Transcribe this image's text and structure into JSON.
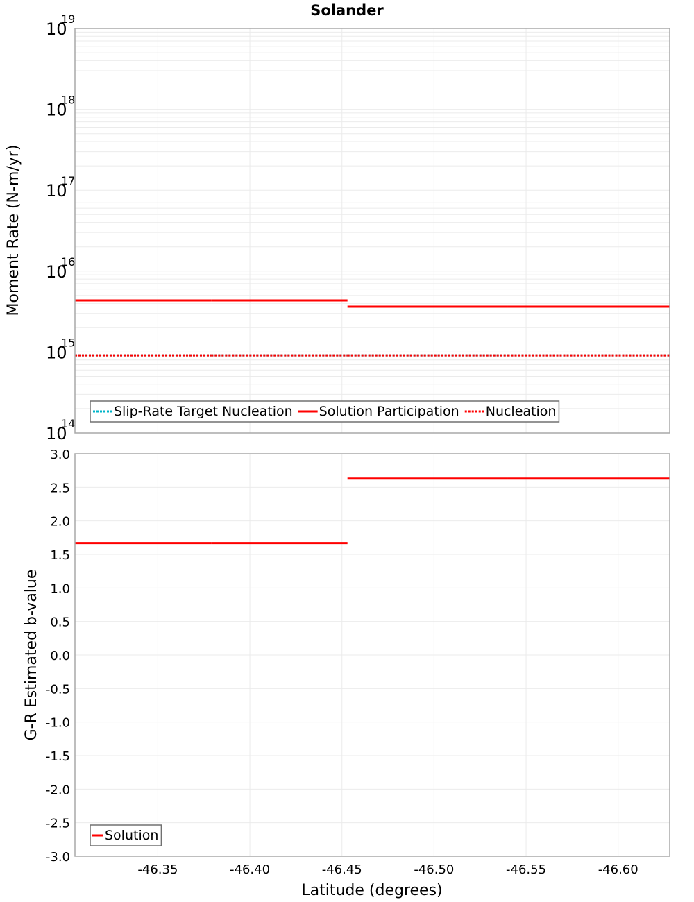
{
  "figure": {
    "title": "Solander",
    "xlabel": "Latitude (degrees)"
  },
  "chart_data": [
    {
      "type": "line",
      "panel": "top",
      "title": "Solander",
      "xlabel": "Latitude (degrees)",
      "ylabel": "Moment Rate (N-m/yr)",
      "yscale": "log",
      "ylim": [
        100000000000000.0,
        1e+19
      ],
      "xlim": [
        -46.305,
        -46.628
      ],
      "x_inverted": true,
      "grid": true,
      "y_ticks": [
        {
          "base": "10",
          "exp": "14",
          "value": 100000000000000.0
        },
        {
          "base": "10",
          "exp": "15",
          "value": 1000000000000000.0
        },
        {
          "base": "10",
          "exp": "16",
          "value": 1e+16
        },
        {
          "base": "10",
          "exp": "17",
          "value": 1e+17
        },
        {
          "base": "10",
          "exp": "18",
          "value": 1e+18
        },
        {
          "base": "10",
          "exp": "19",
          "value": 1e+19
        }
      ],
      "x_ticks": [
        "-46.35",
        "-46.40",
        "-46.45",
        "-46.50",
        "-46.55",
        "-46.60"
      ],
      "legend_position": "lower-left",
      "legend": [
        {
          "label": "Slip-Rate Target Nucleation",
          "color": "#00b4c8",
          "style": "dotted"
        },
        {
          "label": "Solution Participation",
          "color": "#ff0000",
          "style": "solid"
        },
        {
          "label": "Nucleation",
          "color": "#ff0000",
          "style": "dotted"
        }
      ],
      "segment_edges": [
        -46.305,
        -46.379,
        -46.453,
        -46.54,
        -46.628
      ],
      "series": [
        {
          "name": "Slip-Rate Target Nucleation",
          "color": "#00b4c8",
          "style": "dotted",
          "values": [
            910000000000000.0,
            910000000000000.0,
            910000000000000.0,
            910000000000000.0
          ]
        },
        {
          "name": "Solution Participation",
          "color": "#ff0000",
          "style": "solid",
          "values": [
            4350000000000000.0,
            4350000000000000.0,
            3640000000000000.0,
            3640000000000000.0
          ]
        },
        {
          "name": "Nucleation",
          "color": "#ff0000",
          "style": "dotted",
          "values": [
            910000000000000.0,
            910000000000000.0,
            910000000000000.0,
            910000000000000.0
          ]
        }
      ]
    },
    {
      "type": "line",
      "panel": "bottom",
      "xlabel": "Latitude (degrees)",
      "ylabel": "G-R Estimated b-value",
      "ylim": [
        -3.0,
        3.0
      ],
      "xlim": [
        -46.305,
        -46.628
      ],
      "x_inverted": true,
      "grid": true,
      "y_ticks": [
        "3.0",
        "2.5",
        "2.0",
        "1.5",
        "1.0",
        "0.5",
        "0.0",
        "-0.5",
        "-1.0",
        "-1.5",
        "-2.0",
        "-2.5",
        "-3.0"
      ],
      "x_ticks": [
        "-46.35",
        "-46.40",
        "-46.45",
        "-46.50",
        "-46.55",
        "-46.60"
      ],
      "legend_position": "lower-left",
      "legend": [
        {
          "label": "Solution",
          "color": "#ff0000",
          "style": "solid"
        }
      ],
      "segment_edges": [
        -46.305,
        -46.379,
        -46.453,
        -46.54,
        -46.628
      ],
      "series": [
        {
          "name": "Solution",
          "color": "#ff0000",
          "style": "solid",
          "values": [
            1.67,
            1.67,
            2.63,
            2.63
          ]
        }
      ]
    }
  ]
}
